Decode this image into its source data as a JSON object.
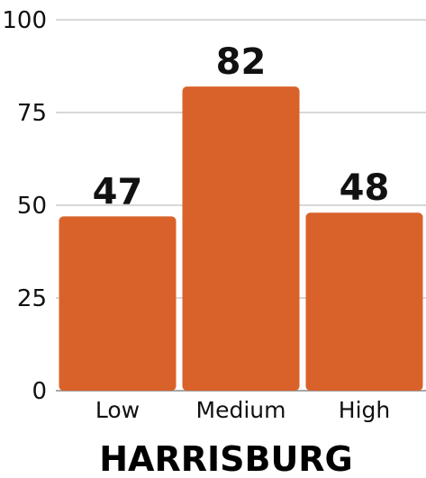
{
  "chart_data": {
    "type": "bar",
    "title": "HARRISBURG",
    "categories": [
      "Low",
      "Medium",
      "High"
    ],
    "values": [
      47,
      82,
      48
    ],
    "ylim": [
      0,
      100
    ],
    "yticks": [
      0,
      25,
      50,
      75,
      100
    ],
    "xlabel": "",
    "ylabel": "",
    "grid": true,
    "data_labels": true,
    "colors": {
      "bar": "#d9622b",
      "grid": "#cccccc",
      "text": "#111111"
    }
  }
}
